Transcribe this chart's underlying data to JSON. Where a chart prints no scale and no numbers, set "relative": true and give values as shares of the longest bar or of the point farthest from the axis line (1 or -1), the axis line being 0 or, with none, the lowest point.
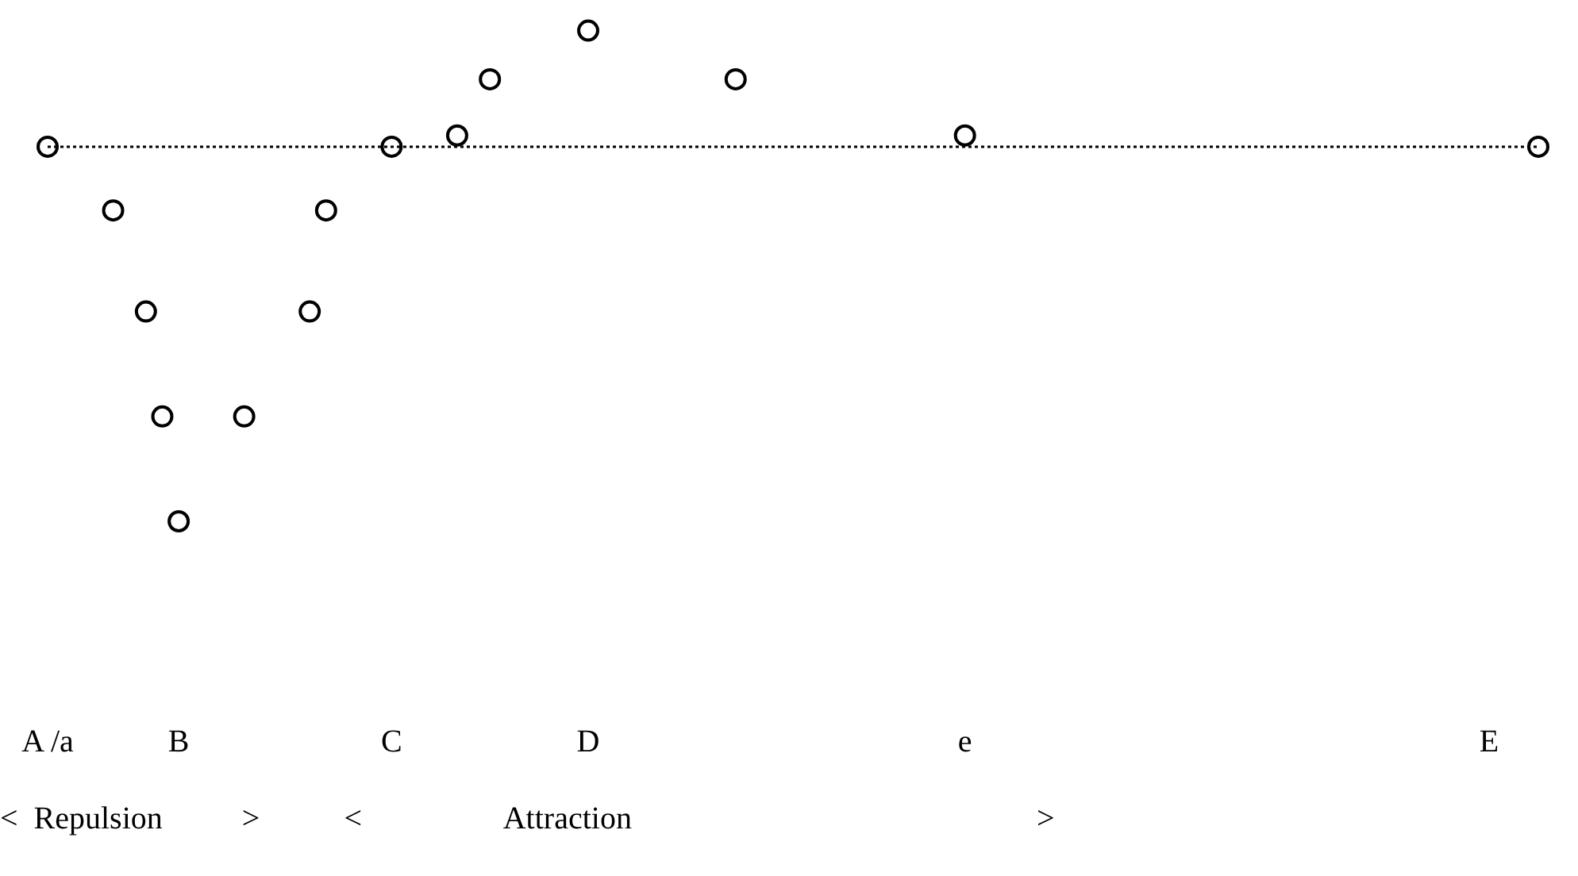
{
  "chart_data": {
    "type": "scatter",
    "relative": true,
    "marker": "circle",
    "legend": false,
    "grid": false,
    "tick_labels": "x",
    "categories": [
      "A /a",
      null,
      null,
      null,
      null,
      null,
      null,
      null,
      "B",
      null,
      null,
      null,
      null,
      null,
      null,
      null,
      null,
      null,
      null,
      null,
      null,
      "C",
      null,
      null,
      null,
      null,
      null,
      null,
      null,
      null,
      null,
      null,
      null,
      "D",
      null,
      null,
      null,
      null,
      null,
      null,
      null,
      null,
      null,
      null,
      null,
      null,
      null,
      null,
      null,
      null,
      null,
      null,
      null,
      null,
      null,
      null,
      "e",
      null,
      null,
      null,
      null,
      null,
      null,
      null,
      null,
      null,
      null,
      null,
      null,
      null,
      null,
      null,
      null,
      null,
      null,
      null,
      null,
      null,
      null,
      null,
      null,
      null,
      null,
      null,
      null,
      null,
      null,
      null,
      "E",
      null,
      null,
      null
    ],
    "values": [
      0,
      null,
      null,
      null,
      -0.17,
      null,
      -0.44,
      -0.72,
      -1,
      null,
      null,
      null,
      -0.72,
      null,
      null,
      null,
      -0.44,
      -0.17,
      null,
      null,
      null,
      0,
      null,
      null,
      null,
      0.03,
      null,
      0.18,
      null,
      null,
      null,
      null,
      null,
      0.31,
      null,
      null,
      null,
      null,
      null,
      null,
      null,
      null,
      0.18,
      null,
      null,
      null,
      null,
      null,
      null,
      null,
      null,
      null,
      null,
      null,
      null,
      null,
      0.03,
      null,
      null,
      null,
      null,
      null,
      null,
      null,
      null,
      null,
      null,
      null,
      null,
      null,
      null,
      null,
      null,
      null,
      null,
      null,
      null,
      null,
      null,
      null,
      null,
      null,
      null,
      null,
      null,
      null,
      null,
      null,
      null,
      null,
      null,
      0
    ],
    "color": "#000000",
    "ref_lines": [
      {
        "axis": "y",
        "value": 0,
        "line_style": "dotted",
        "color": "#000000"
      }
    ],
    "annotations": [
      "<  Repulsion          >",
      "<                  Attraction                                                   >"
    ]
  }
}
